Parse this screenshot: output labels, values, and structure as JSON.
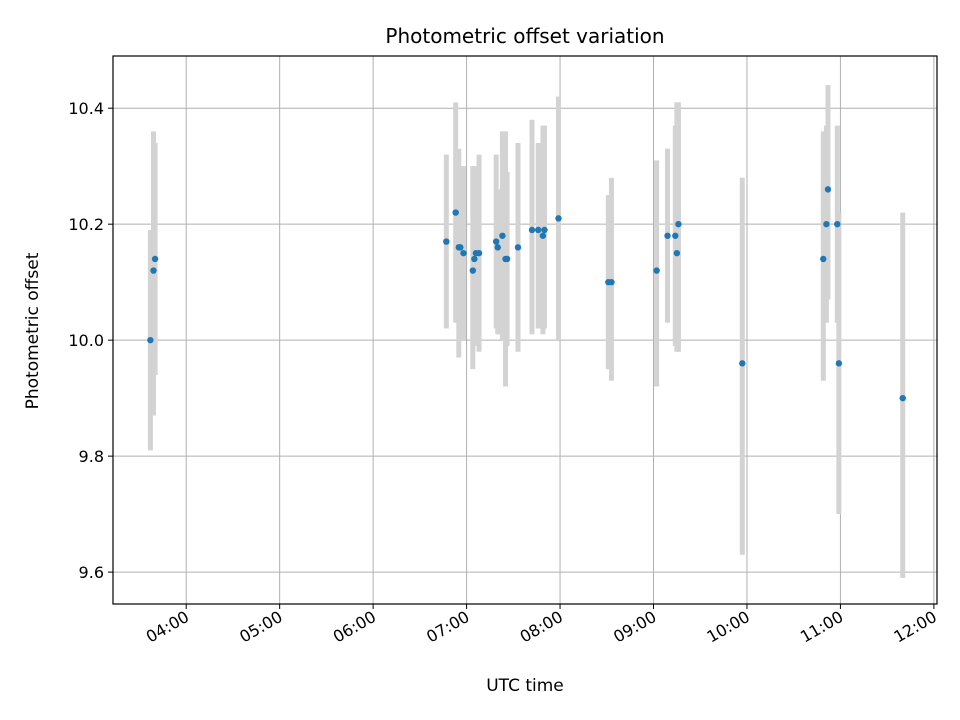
{
  "chart_data": {
    "type": "scatter",
    "title": "Photometric offset variation",
    "xlabel": "UTC time",
    "ylabel": "Photometric offset",
    "xlim": [
      "03:13",
      "12:02"
    ],
    "ylim": [
      9.545,
      10.49
    ],
    "grid": true,
    "x_ticks": [
      "04:00",
      "05:00",
      "06:00",
      "07:00",
      "08:00",
      "09:00",
      "10:00",
      "11:00",
      "12:00"
    ],
    "y_ticks": [
      "9.6",
      "9.8",
      "10.0",
      "10.2",
      "10.4"
    ],
    "colors": {
      "point": "#1f77b4",
      "errorbar": "#d3d3d3",
      "grid": "#b0b0b0"
    },
    "points": [
      {
        "x": "03:37",
        "y": 10.0,
        "low": 9.81,
        "high": 10.19
      },
      {
        "x": "03:39",
        "y": 10.12,
        "low": 9.87,
        "high": 10.36
      },
      {
        "x": "03:40",
        "y": 10.14,
        "low": 9.94,
        "high": 10.34
      },
      {
        "x": "06:47",
        "y": 10.17,
        "low": 10.02,
        "high": 10.32
      },
      {
        "x": "06:53",
        "y": 10.22,
        "low": 10.03,
        "high": 10.41
      },
      {
        "x": "06:55",
        "y": 10.16,
        "low": 9.97,
        "high": 10.33
      },
      {
        "x": "06:56",
        "y": 10.16,
        "low": 10.03,
        "high": 10.29
      },
      {
        "x": "06:58",
        "y": 10.15,
        "low": 10.0,
        "high": 10.3
      },
      {
        "x": "07:04",
        "y": 10.12,
        "low": 9.95,
        "high": 10.3
      },
      {
        "x": "07:05",
        "y": 10.14,
        "low": 9.99,
        "high": 10.28
      },
      {
        "x": "07:06",
        "y": 10.15,
        "low": 10.0,
        "high": 10.3
      },
      {
        "x": "07:08",
        "y": 10.15,
        "low": 9.98,
        "high": 10.32
      },
      {
        "x": "07:19",
        "y": 10.17,
        "low": 10.02,
        "high": 10.32
      },
      {
        "x": "07:20",
        "y": 10.16,
        "low": 10.01,
        "high": 10.26
      },
      {
        "x": "07:23",
        "y": 10.18,
        "low": 10.0,
        "high": 10.36
      },
      {
        "x": "07:25",
        "y": 10.14,
        "low": 9.92,
        "high": 10.36
      },
      {
        "x": "07:26",
        "y": 10.14,
        "low": 9.99,
        "high": 10.29
      },
      {
        "x": "07:33",
        "y": 10.16,
        "low": 9.98,
        "high": 10.34
      },
      {
        "x": "07:42",
        "y": 10.19,
        "low": 10.01,
        "high": 10.38
      },
      {
        "x": "07:46",
        "y": 10.19,
        "low": 10.02,
        "high": 10.34
      },
      {
        "x": "07:49",
        "y": 10.18,
        "low": 10.01,
        "high": 10.37
      },
      {
        "x": "07:50",
        "y": 10.19,
        "low": 10.02,
        "high": 10.37
      },
      {
        "x": "07:59",
        "y": 10.21,
        "low": 10.0,
        "high": 10.42
      },
      {
        "x": "08:31",
        "y": 10.1,
        "low": 9.95,
        "high": 10.25
      },
      {
        "x": "08:33",
        "y": 10.1,
        "low": 9.93,
        "high": 10.28
      },
      {
        "x": "09:02",
        "y": 10.12,
        "low": 9.92,
        "high": 10.31
      },
      {
        "x": "09:09",
        "y": 10.18,
        "low": 10.03,
        "high": 10.33
      },
      {
        "x": "09:14",
        "y": 10.18,
        "low": 9.99,
        "high": 10.37
      },
      {
        "x": "09:15",
        "y": 10.15,
        "low": 9.98,
        "high": 10.41
      },
      {
        "x": "09:16",
        "y": 10.2,
        "low": 9.98,
        "high": 10.41
      },
      {
        "x": "09:57",
        "y": 9.96,
        "low": 9.63,
        "high": 10.28
      },
      {
        "x": "10:49",
        "y": 10.14,
        "low": 9.93,
        "high": 10.36
      },
      {
        "x": "10:51",
        "y": 10.2,
        "low": 10.03,
        "high": 10.37
      },
      {
        "x": "10:52",
        "y": 10.26,
        "low": 10.07,
        "high": 10.44
      },
      {
        "x": "10:58",
        "y": 10.2,
        "low": 10.03,
        "high": 10.37
      },
      {
        "x": "10:59",
        "y": 9.96,
        "low": 9.7,
        "high": 10.22
      },
      {
        "x": "11:40",
        "y": 9.9,
        "low": 9.59,
        "high": 10.22
      }
    ]
  }
}
